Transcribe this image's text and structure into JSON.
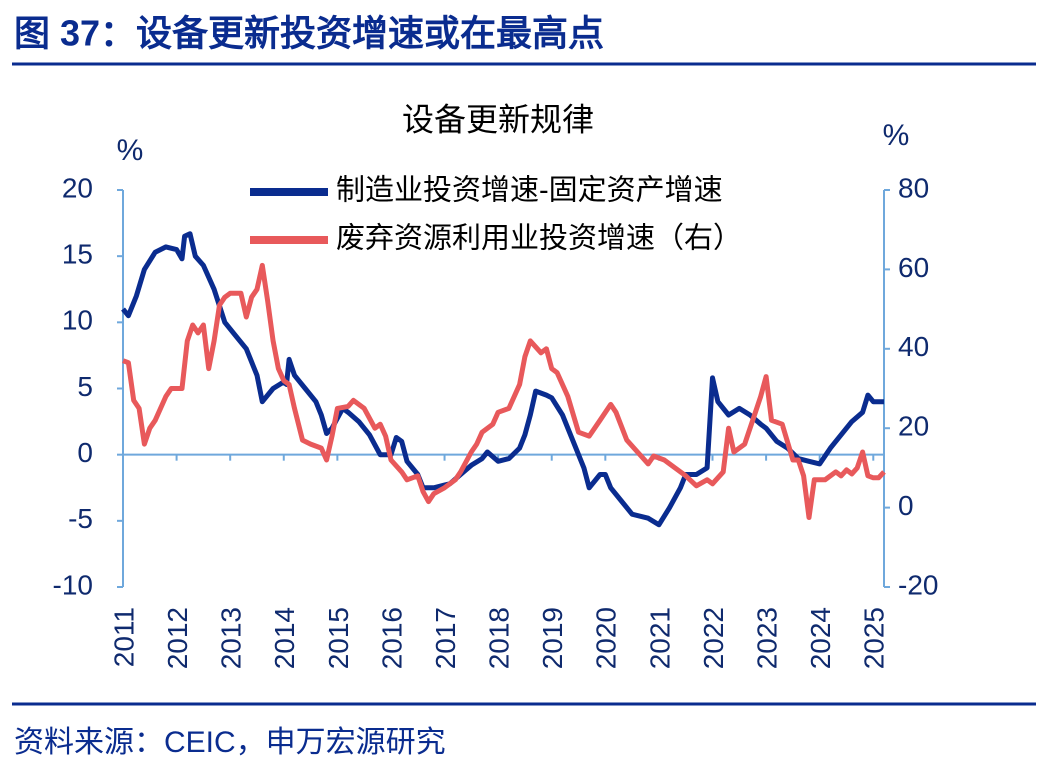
{
  "header": {
    "title": "图 37：设备更新投资增速或在最高点"
  },
  "chart_data": {
    "type": "line",
    "title": "设备更新规律",
    "y_label": "%",
    "y2_label": "%",
    "xlim": [
      2011,
      2025.2
    ],
    "xticks": [
      2011,
      2012,
      2013,
      2014,
      2015,
      2016,
      2017,
      2018,
      2019,
      2020,
      2021,
      2022,
      2023,
      2024,
      2025
    ],
    "ylim": [
      -10,
      20
    ],
    "yticks": [
      -10,
      -5,
      0,
      5,
      10,
      15,
      20
    ],
    "y2lim": [
      -20,
      80
    ],
    "y2ticks": [
      -20,
      0,
      20,
      40,
      60,
      80
    ],
    "legend": "top",
    "series": [
      {
        "name": "制造业投资增速-固定资产增速",
        "color": "#0a2c8f",
        "x": [
          2011.0,
          2011.1,
          2011.25,
          2011.4,
          2011.6,
          2011.8,
          2012.0,
          2012.1,
          2012.15,
          2012.25,
          2012.35,
          2012.5,
          2012.7,
          2012.9,
          2013.1,
          2013.3,
          2013.5,
          2013.6,
          2013.8,
          2014.0,
          2014.05,
          2014.1,
          2014.2,
          2014.4,
          2014.6,
          2014.7,
          2014.8,
          2014.9,
          2015.1,
          2015.2,
          2015.4,
          2015.6,
          2015.8,
          2016.0,
          2016.1,
          2016.2,
          2016.3,
          2016.5,
          2016.6,
          2016.8,
          2017.0,
          2017.1,
          2017.3,
          2017.5,
          2017.7,
          2017.8,
          2018.0,
          2018.2,
          2018.4,
          2018.5,
          2018.6,
          2018.7,
          2018.9,
          2019.0,
          2019.2,
          2019.4,
          2019.6,
          2019.7,
          2019.9,
          2020.0,
          2020.1,
          2020.3,
          2020.5,
          2020.8,
          2021.0,
          2021.2,
          2021.4,
          2021.5,
          2021.7,
          2021.9,
          2022.0,
          2022.1,
          2022.3,
          2022.5,
          2022.7,
          2022.9,
          2023.0,
          2023.2,
          2023.4,
          2023.6,
          2023.8,
          2024.0,
          2024.2,
          2024.4,
          2024.6,
          2024.8,
          2024.9,
          2025.0,
          2025.2
        ],
        "values": [
          11,
          10.5,
          12,
          14,
          15.3,
          15.7,
          15.5,
          14.8,
          16.5,
          16.7,
          15,
          14.3,
          12.5,
          10,
          9,
          8,
          6,
          4,
          5,
          5.5,
          5.3,
          7.2,
          6,
          5,
          4,
          3,
          1.6,
          2,
          3.5,
          3.2,
          2.5,
          1.5,
          0,
          0,
          1.3,
          1,
          -0.5,
          -1.5,
          -2.5,
          -2.5,
          -2.3,
          -2.2,
          -1.5,
          -0.8,
          -0.3,
          0.2,
          -0.5,
          -0.3,
          0.5,
          1.5,
          3,
          4.8,
          4.5,
          4.3,
          3,
          1,
          -1,
          -2.5,
          -1.5,
          -1.5,
          -2.5,
          -3.5,
          -4.5,
          -4.8,
          -5.3,
          -4,
          -2.5,
          -1.5,
          -1.5,
          -1,
          5.8,
          4,
          3,
          3.5,
          3,
          2.3,
          2,
          1,
          0.5,
          -0.3,
          -0.5,
          -0.7,
          0.5,
          1.5,
          2.5,
          3.2,
          4.5,
          4,
          4
        ]
      },
      {
        "name": "废弃资源利用业投资增速（右）",
        "color": "#e8595b",
        "axis": "y2",
        "x": [
          2011.0,
          2011.1,
          2011.2,
          2011.3,
          2011.4,
          2011.5,
          2011.6,
          2011.8,
          2011.9,
          2012.1,
          2012.2,
          2012.3,
          2012.4,
          2012.5,
          2012.6,
          2012.7,
          2012.8,
          2012.9,
          2013.0,
          2013.2,
          2013.3,
          2013.4,
          2013.5,
          2013.6,
          2013.7,
          2013.8,
          2013.9,
          2014.0,
          2014.1,
          2014.2,
          2014.35,
          2014.5,
          2014.7,
          2014.8,
          2014.9,
          2015.0,
          2015.2,
          2015.3,
          2015.5,
          2015.7,
          2015.8,
          2015.9,
          2016.0,
          2016.2,
          2016.3,
          2016.5,
          2016.6,
          2016.7,
          2016.8,
          2017.0,
          2017.2,
          2017.3,
          2017.5,
          2017.6,
          2017.7,
          2017.9,
          2018.0,
          2018.2,
          2018.4,
          2018.5,
          2018.6,
          2018.8,
          2018.9,
          2019.0,
          2019.1,
          2019.3,
          2019.5,
          2019.7,
          2019.9,
          2020.1,
          2020.2,
          2020.4,
          2020.6,
          2020.8,
          2020.9,
          2021.1,
          2021.3,
          2021.5,
          2021.7,
          2021.9,
          2022.0,
          2022.2,
          2022.3,
          2022.4,
          2022.6,
          2022.8,
          2022.9,
          2023.0,
          2023.1,
          2023.3,
          2023.5,
          2023.6,
          2023.7,
          2023.8,
          2023.9,
          2024.1,
          2024.3,
          2024.4,
          2024.5,
          2024.6,
          2024.7,
          2024.8,
          2024.9,
          2025.0,
          2025.1,
          2025.2
        ],
        "values": [
          37,
          36.5,
          27,
          25,
          16,
          20,
          22,
          28,
          30,
          30,
          42,
          46,
          44,
          46,
          35,
          42,
          51,
          53,
          54,
          54,
          48,
          53,
          55,
          61,
          52,
          42,
          35,
          32,
          31,
          25,
          17,
          16,
          15,
          12,
          18,
          25,
          25.5,
          27,
          25,
          20,
          21,
          18,
          12,
          9,
          7,
          8,
          4,
          1.5,
          3.5,
          5,
          7,
          9,
          14,
          16,
          19,
          21,
          24,
          25,
          31,
          38,
          42,
          39,
          40,
          35,
          34,
          28,
          19,
          18,
          22,
          26,
          24,
          17,
          14,
          11,
          13,
          12,
          10,
          8,
          5.5,
          7,
          6,
          9,
          20,
          14,
          16,
          24,
          28,
          33,
          22,
          21,
          12,
          12,
          8,
          -2.5,
          7,
          7,
          9,
          8,
          9.5,
          8.5,
          10,
          14,
          8,
          7.5,
          7.5,
          9
        ]
      }
    ]
  },
  "footer": {
    "source": "资料来源：CEIC，申万宏源研究"
  }
}
